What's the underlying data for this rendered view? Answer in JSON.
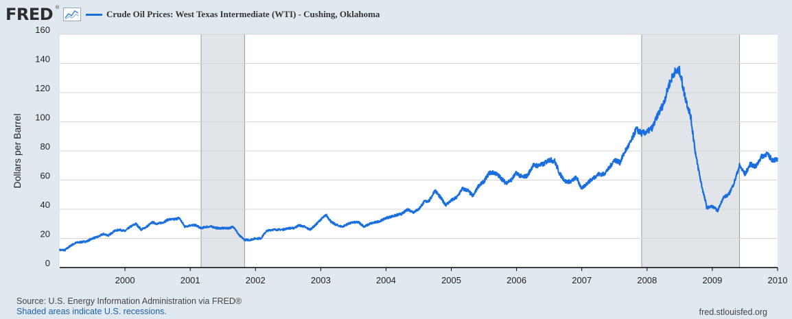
{
  "header": {
    "logo_text": "FRED",
    "logo_registered": "®",
    "legend_label": "Crude Oil Prices: West Texas Intermediate (WTI) - Cushing, Oklahoma"
  },
  "footer": {
    "source": "Source: U.S. Energy Information Administration via FRED®",
    "recession_note": "Shaded areas indicate U.S. recessions.",
    "site": "fred.stlouisfed.org"
  },
  "colors": {
    "line": "#1a6fdf",
    "recession": "#e1e5ea",
    "grid": "#d4d4d4",
    "background": "#e1e9f0",
    "plot": "#ffffff"
  },
  "chart_data": {
    "type": "line",
    "title": "",
    "xlabel": "",
    "ylabel": "Dollars per Barrel",
    "ylim": [
      0,
      160
    ],
    "yticks": [
      0,
      20,
      40,
      60,
      80,
      100,
      120,
      140,
      160
    ],
    "xlim": [
      "1999-01",
      "2010-01"
    ],
    "xticks": [
      "2000",
      "2001",
      "2002",
      "2003",
      "2004",
      "2005",
      "2006",
      "2007",
      "2008",
      "2009",
      "2010"
    ],
    "grid": "horizontal",
    "recessions": [
      {
        "start": "2001-03",
        "end": "2001-11"
      },
      {
        "start": "2007-12",
        "end": "2009-06"
      }
    ],
    "series": [
      {
        "name": "Crude Oil Prices: West Texas Intermediate (WTI) - Cushing, Oklahoma",
        "x": [
          "1999-01",
          "1999-02",
          "1999-03",
          "1999-04",
          "1999-05",
          "1999-06",
          "1999-07",
          "1999-08",
          "1999-09",
          "1999-10",
          "1999-11",
          "1999-12",
          "2000-01",
          "2000-02",
          "2000-03",
          "2000-04",
          "2000-05",
          "2000-06",
          "2000-07",
          "2000-08",
          "2000-09",
          "2000-10",
          "2000-11",
          "2000-12",
          "2001-01",
          "2001-02",
          "2001-03",
          "2001-04",
          "2001-05",
          "2001-06",
          "2001-07",
          "2001-08",
          "2001-09",
          "2001-10",
          "2001-11",
          "2001-12",
          "2002-01",
          "2002-02",
          "2002-03",
          "2002-04",
          "2002-05",
          "2002-06",
          "2002-07",
          "2002-08",
          "2002-09",
          "2002-10",
          "2002-11",
          "2002-12",
          "2003-01",
          "2003-02",
          "2003-03",
          "2003-04",
          "2003-05",
          "2003-06",
          "2003-07",
          "2003-08",
          "2003-09",
          "2003-10",
          "2003-11",
          "2003-12",
          "2004-01",
          "2004-02",
          "2004-03",
          "2004-04",
          "2004-05",
          "2004-06",
          "2004-07",
          "2004-08",
          "2004-09",
          "2004-10",
          "2004-11",
          "2004-12",
          "2005-01",
          "2005-02",
          "2005-03",
          "2005-04",
          "2005-05",
          "2005-06",
          "2005-07",
          "2005-08",
          "2005-09",
          "2005-10",
          "2005-11",
          "2005-12",
          "2006-01",
          "2006-02",
          "2006-03",
          "2006-04",
          "2006-05",
          "2006-06",
          "2006-07",
          "2006-08",
          "2006-09",
          "2006-10",
          "2006-11",
          "2006-12",
          "2007-01",
          "2007-02",
          "2007-03",
          "2007-04",
          "2007-05",
          "2007-06",
          "2007-07",
          "2007-08",
          "2007-09",
          "2007-10",
          "2007-11",
          "2007-12",
          "2008-01",
          "2008-02",
          "2008-03",
          "2008-04",
          "2008-05",
          "2008-06",
          "2008-07",
          "2008-08",
          "2008-09",
          "2008-10",
          "2008-11",
          "2008-12",
          "2009-01",
          "2009-02",
          "2009-03",
          "2009-04",
          "2009-05",
          "2009-06",
          "2009-07",
          "2009-08",
          "2009-09",
          "2009-10",
          "2009-11",
          "2009-12"
        ],
        "y": [
          12,
          12,
          15,
          17,
          17.5,
          18,
          20,
          21,
          23,
          22,
          25,
          26,
          25,
          28,
          30,
          26,
          28,
          31,
          30,
          31,
          33,
          33,
          34,
          28,
          29,
          29,
          27,
          28,
          28,
          27,
          27,
          27,
          28,
          22,
          19,
          19,
          20,
          20,
          25,
          26,
          26,
          26,
          27,
          27,
          29,
          28,
          26,
          29,
          33,
          36,
          31,
          29,
          28,
          30,
          31,
          31,
          28,
          30,
          31,
          32,
          34,
          35,
          36,
          37,
          40,
          38,
          40,
          45,
          46,
          53,
          48,
          43,
          46,
          48,
          54,
          53,
          49,
          56,
          59,
          65,
          65,
          62,
          58,
          60,
          65,
          62,
          63,
          70,
          70,
          71,
          74,
          73,
          64,
          59,
          59,
          62,
          54,
          58,
          61,
          64,
          64,
          68,
          74,
          72,
          80,
          86,
          95,
          92,
          93,
          96,
          105,
          112,
          125,
          134,
          135,
          117,
          104,
          76,
          57,
          41,
          42,
          39,
          48,
          50,
          58,
          70,
          64,
          71,
          69,
          76,
          78,
          74
        ]
      }
    ]
  }
}
